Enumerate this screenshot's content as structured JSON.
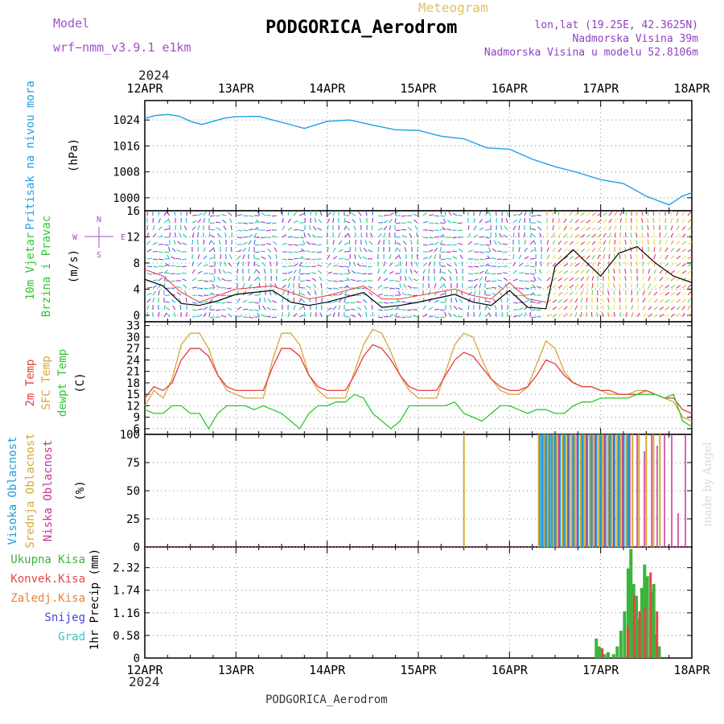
{
  "header": {
    "model_label": "Model",
    "model_name": "wrf−nmm_v3.9.1 e1km",
    "meteogram_label": "Meteogram",
    "station_title": "PODGORICA_Aerodrom",
    "lonlat": "lon,lat (19.25E, 42.3625N)",
    "elevation": "Nadmorska Visina 39m",
    "model_elevation": "Nadmorska Visina u modelu 52.8106m",
    "year_top": "2024",
    "year_bottom": "2024",
    "footer_station": "PODGORICA_Aerodrom",
    "credit": "made by Angel"
  },
  "colors": {
    "pressure": "#1ea0e6",
    "temp2m": "#e83c3c",
    "sfc_temp": "#d8a63c",
    "dewpoint": "#2cc82c",
    "cloud_high": "#1e9bd8",
    "cloud_mid": "#d2aa32",
    "cloud_low": "#c83296",
    "precip_total": "#3cb43c",
    "precip_conv": "#e64646",
    "precip_frozen": "#e6823c",
    "precip_snow": "#4646dc",
    "precip_graupel": "#32c8c8",
    "wind_speed_line": "#000000",
    "wind_gust": "#e63c3c"
  },
  "chart_data": [
    {
      "type": "line",
      "panel": "pressure",
      "ylabel_lines": [
        "Pritisak na nivou mora",
        "(hPa)"
      ],
      "ylim": [
        996,
        1030
      ],
      "yticks": [
        1000,
        1008,
        1016,
        1024
      ],
      "xticks": [
        "12APR",
        "13APR",
        "14APR",
        "15APR",
        "16APR",
        "17APR",
        "18APR"
      ],
      "grid": true,
      "series": [
        {
          "key": "msl_pressure",
          "x": [
            0,
            0.125,
            0.25,
            0.375,
            0.5,
            0.625,
            0.75,
            0.875,
            1.0,
            1.25,
            1.5,
            1.75,
            2.0,
            2.25,
            2.5,
            2.75,
            3.0,
            3.25,
            3.5,
            3.75,
            4.0,
            4.25,
            4.5,
            4.75,
            5.0,
            5.25,
            5.5,
            5.75,
            5.9,
            6.0
          ],
          "values": [
            1024.5,
            1025.4,
            1025.7,
            1025.2,
            1023.6,
            1022.6,
            1023.6,
            1024.6,
            1025.0,
            1025.1,
            1023.3,
            1021.4,
            1023.6,
            1024.0,
            1022.4,
            1021.0,
            1020.8,
            1019.0,
            1018.2,
            1015.4,
            1015.0,
            1011.9,
            1009.6,
            1007.8,
            1005.6,
            1004.4,
            1000.5,
            997.8,
            1000.6,
            1001.5
          ]
        }
      ]
    },
    {
      "type": "line",
      "panel": "wind",
      "ylabel_lines": [
        "10m Vjetar",
        "Brzina i Pravac",
        "(m/s)"
      ],
      "compass_labels": [
        "N",
        "W",
        "E",
        "S"
      ],
      "ylim": [
        -1,
        16
      ],
      "yticks": [
        0,
        4,
        8,
        12,
        16
      ],
      "grid": true,
      "series": [
        {
          "key": "wind_speed",
          "x": [
            0,
            0.2,
            0.4,
            0.6,
            0.8,
            1.0,
            1.4,
            1.6,
            1.8,
            2.0,
            2.4,
            2.6,
            2.8,
            3.0,
            3.4,
            3.6,
            3.8,
            4.0,
            4.2,
            4.4,
            4.5,
            4.7,
            5.0,
            5.2,
            5.4,
            5.6,
            5.8,
            6.0
          ],
          "values": [
            5.5,
            4.5,
            1.8,
            1.5,
            2.2,
            3.2,
            3.8,
            2.0,
            1.5,
            2.0,
            3.5,
            1.2,
            1.5,
            2.0,
            3.2,
            2.0,
            1.5,
            3.8,
            1.2,
            1.0,
            7.5,
            10.0,
            6.0,
            9.5,
            10.5,
            8.0,
            6.0,
            5.0
          ]
        },
        {
          "key": "wind_gust",
          "x": [
            0,
            0.2,
            0.4,
            0.6,
            0.8,
            1.0,
            1.4,
            1.6,
            1.8,
            2.0,
            2.4,
            2.6,
            2.8,
            3.0,
            3.4,
            3.6,
            3.8,
            4.0,
            4.2,
            4.4
          ],
          "values": [
            7.0,
            6.0,
            3.5,
            2.0,
            3.0,
            4.0,
            4.5,
            3.5,
            2.5,
            3.0,
            4.5,
            2.5,
            2.5,
            3.0,
            4.0,
            3.0,
            2.5,
            5.0,
            2.5,
            2.0
          ]
        }
      ]
    },
    {
      "type": "line",
      "panel": "temperature",
      "ylabel_lines": [
        "2m Temp",
        "SFC Temp",
        "dewpt Temp",
        "(C)"
      ],
      "ylim": [
        4.5,
        34
      ],
      "yticks": [
        6,
        9,
        12,
        15,
        18,
        21,
        24,
        27,
        30,
        33
      ],
      "grid": true,
      "series": [
        {
          "key": "temp_2m",
          "x": [
            0,
            0.1,
            0.2,
            0.3,
            0.4,
            0.5,
            0.6,
            0.7,
            0.8,
            0.9,
            1.0,
            1.1,
            1.2,
            1.3,
            1.4,
            1.5,
            1.6,
            1.7,
            1.8,
            1.9,
            2.0,
            2.1,
            2.2,
            2.3,
            2.4,
            2.5,
            2.6,
            2.7,
            2.8,
            2.9,
            3.0,
            3.1,
            3.2,
            3.3,
            3.4,
            3.5,
            3.6,
            3.7,
            3.8,
            3.9,
            4.0,
            4.1,
            4.2,
            4.3,
            4.4,
            4.5,
            4.6,
            4.7,
            4.8,
            4.9,
            5.0,
            5.1,
            5.2,
            5.3,
            5.4,
            5.5,
            5.6,
            5.7,
            5.8,
            5.9,
            6.0
          ],
          "values": [
            14,
            17,
            16,
            18,
            24,
            27,
            27,
            25,
            20,
            17,
            16,
            16,
            16,
            16,
            22,
            27,
            27,
            25,
            20,
            17,
            16,
            16,
            16,
            20,
            25,
            28,
            27,
            24,
            20,
            17,
            16,
            16,
            16,
            20,
            24,
            26,
            25,
            22,
            19,
            17,
            16,
            16,
            17,
            20,
            24,
            23,
            20,
            18,
            17,
            17,
            16,
            16,
            15,
            15,
            15,
            16,
            15,
            14,
            14,
            11,
            10
          ]
        },
        {
          "key": "sfc_temp",
          "x": [
            0,
            0.1,
            0.2,
            0.3,
            0.4,
            0.5,
            0.6,
            0.7,
            0.8,
            0.9,
            1.0,
            1.1,
            1.2,
            1.3,
            1.4,
            1.5,
            1.6,
            1.7,
            1.8,
            1.9,
            2.0,
            2.1,
            2.2,
            2.3,
            2.4,
            2.5,
            2.6,
            2.7,
            2.8,
            2.9,
            3.0,
            3.1,
            3.2,
            3.3,
            3.4,
            3.5,
            3.6,
            3.7,
            3.8,
            3.9,
            4.0,
            4.1,
            4.2,
            4.3,
            4.4,
            4.5,
            4.6,
            4.7,
            4.8,
            4.9,
            5.0,
            5.1,
            5.2,
            5.3,
            5.4,
            5.5,
            5.6,
            5.7,
            5.8,
            5.9,
            6.0
          ],
          "values": [
            12,
            16,
            14,
            19,
            28,
            31,
            31,
            27,
            20,
            16,
            15,
            14,
            14,
            14,
            24,
            31,
            31,
            28,
            20,
            16,
            14,
            14,
            14,
            21,
            28,
            32,
            31,
            26,
            20,
            16,
            14,
            14,
            14,
            21,
            28,
            31,
            30,
            24,
            19,
            16,
            15,
            15,
            17,
            23,
            29,
            27,
            21,
            18,
            17,
            17,
            16,
            15,
            15,
            15,
            16,
            16,
            15,
            14,
            13,
            9,
            8
          ]
        },
        {
          "key": "dewpoint",
          "x": [
            0,
            0.1,
            0.2,
            0.3,
            0.4,
            0.5,
            0.6,
            0.7,
            0.8,
            0.9,
            1.0,
            1.1,
            1.2,
            1.3,
            1.4,
            1.5,
            1.6,
            1.7,
            1.8,
            1.9,
            2.0,
            2.1,
            2.2,
            2.3,
            2.4,
            2.5,
            2.6,
            2.7,
            2.8,
            2.9,
            3.0,
            3.1,
            3.2,
            3.3,
            3.4,
            3.5,
            3.6,
            3.7,
            3.8,
            3.9,
            4.0,
            4.1,
            4.2,
            4.3,
            4.4,
            4.5,
            4.6,
            4.7,
            4.8,
            4.9,
            5.0,
            5.1,
            5.2,
            5.3,
            5.4,
            5.5,
            5.6,
            5.7,
            5.8,
            5.9,
            6.0
          ],
          "values": [
            11,
            10,
            10,
            12,
            12,
            10,
            10,
            6,
            10,
            12,
            12,
            12,
            11,
            12,
            11,
            10,
            8,
            6,
            10,
            12,
            12,
            13,
            13,
            15,
            14,
            10,
            8,
            6,
            8,
            12,
            12,
            12,
            12,
            12,
            13,
            10,
            9,
            8,
            10,
            12,
            12,
            11,
            10,
            11,
            11,
            10,
            10,
            12,
            13,
            13,
            14,
            14,
            14,
            14,
            15,
            15,
            15,
            14,
            15,
            8,
            6.5
          ]
        }
      ]
    },
    {
      "type": "bar",
      "panel": "cloud",
      "ylabel_lines": [
        "Visoka Oblacnost",
        "Srednja Oblacnost",
        "Niska Oblacnost",
        "(%)"
      ],
      "ylim": [
        0,
        100
      ],
      "yticks": [
        0,
        25,
        50,
        75,
        100
      ],
      "grid": true,
      "series": [
        {
          "key": "high",
          "x": [
            4.33,
            4.36,
            4.4,
            4.44,
            4.47,
            4.5,
            4.55,
            4.6,
            4.65,
            4.7,
            4.75,
            4.8,
            4.85,
            4.9,
            4.95,
            5.0,
            5.05,
            5.1,
            5.15,
            5.2,
            5.25,
            5.3
          ],
          "values": [
            100,
            100,
            100,
            100,
            100,
            100,
            100,
            100,
            100,
            100,
            100,
            100,
            100,
            100,
            100,
            100,
            100,
            100,
            100,
            100,
            100,
            100
          ]
        },
        {
          "key": "mid",
          "x": [
            3.5,
            4.32,
            4.38,
            4.42,
            4.48,
            4.52,
            4.58,
            4.62,
            4.68,
            4.72,
            4.78,
            4.82,
            4.88,
            4.92,
            4.98,
            5.02,
            5.08,
            5.12,
            5.18,
            5.22,
            5.28,
            5.35,
            5.42,
            5.5,
            5.58,
            5.65
          ],
          "values": [
            100,
            100,
            100,
            100,
            100,
            100,
            100,
            100,
            100,
            100,
            100,
            100,
            100,
            100,
            100,
            100,
            100,
            100,
            100,
            100,
            100,
            100,
            100,
            100,
            100,
            100
          ]
        },
        {
          "key": "low",
          "x": [
            4.54,
            4.64,
            4.74,
            4.84,
            4.94,
            5.04,
            5.14,
            5.24,
            5.32,
            5.4,
            5.48,
            5.56,
            5.62,
            5.7,
            5.78,
            5.85,
            5.93
          ],
          "values": [
            100,
            100,
            100,
            100,
            100,
            100,
            100,
            100,
            100,
            100,
            85,
            100,
            90,
            100,
            100,
            30,
            100
          ]
        }
      ]
    },
    {
      "type": "bar",
      "panel": "precip",
      "ylabel_lines": [
        "1hr Precip (mm)"
      ],
      "legend": [
        "Ukupna Kisa",
        "Konvek.Kisa",
        "Zaledj.Kisa",
        "Snijeg",
        "Grad"
      ],
      "ylim": [
        0,
        2.85
      ],
      "yticks": [
        0,
        0.58,
        1.16,
        1.74,
        2.32
      ],
      "xticks": [
        "12APR",
        "13APR",
        "14APR",
        "15APR",
        "16APR",
        "17APR",
        "18APR"
      ],
      "grid": true,
      "series": [
        {
          "key": "total",
          "x": [
            4.97,
            5.0,
            5.03,
            5.06,
            5.1,
            5.16,
            5.2,
            5.24,
            5.28,
            5.32,
            5.35,
            5.38,
            5.41,
            5.44,
            5.47,
            5.5,
            5.53,
            5.57,
            5.6,
            5.63,
            5.66
          ],
          "values": [
            0.5,
            0.3,
            0.25,
            0.1,
            0.15,
            0.1,
            0.3,
            0.7,
            1.2,
            2.3,
            2.8,
            1.9,
            1.6,
            1.0,
            1.8,
            2.4,
            2.1,
            1.7,
            1.9,
            0.6,
            0.3
          ]
        },
        {
          "key": "convective",
          "x": [
            5.0,
            5.28,
            5.35,
            5.41,
            5.47,
            5.53,
            5.6
          ],
          "values": [
            0.25,
            0.8,
            1.6,
            1.2,
            1.3,
            2.2,
            1.2
          ]
        }
      ]
    }
  ]
}
